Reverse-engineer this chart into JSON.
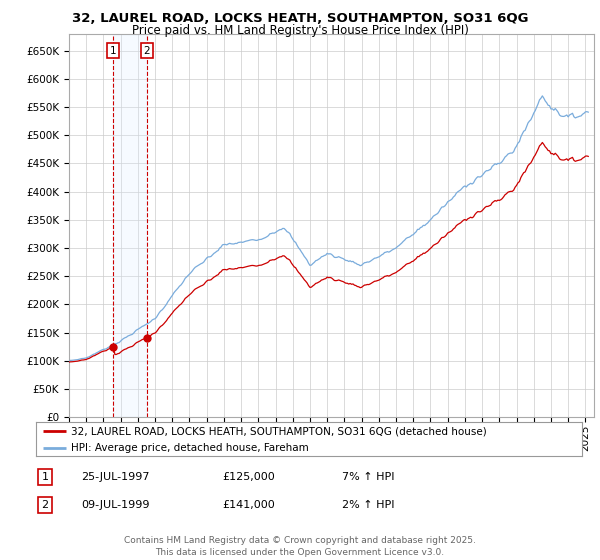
{
  "title_line1": "32, LAUREL ROAD, LOCKS HEATH, SOUTHAMPTON, SO31 6QG",
  "title_line2": "Price paid vs. HM Land Registry's House Price Index (HPI)",
  "xlim_start": 1995.0,
  "xlim_end": 2025.5,
  "ylim_min": 0,
  "ylim_max": 680000,
  "yticks": [
    0,
    50000,
    100000,
    150000,
    200000,
    250000,
    300000,
    350000,
    400000,
    450000,
    500000,
    550000,
    600000,
    650000
  ],
  "ytick_labels": [
    "£0",
    "£50K",
    "£100K",
    "£150K",
    "£200K",
    "£250K",
    "£300K",
    "£350K",
    "£400K",
    "£450K",
    "£500K",
    "£550K",
    "£600K",
    "£650K"
  ],
  "xticks": [
    1995,
    1996,
    1997,
    1998,
    1999,
    2000,
    2001,
    2002,
    2003,
    2004,
    2005,
    2006,
    2007,
    2008,
    2009,
    2010,
    2011,
    2012,
    2013,
    2014,
    2015,
    2016,
    2017,
    2018,
    2019,
    2020,
    2021,
    2022,
    2023,
    2024,
    2025
  ],
  "sale1_x": 1997.56,
  "sale1_y": 125000,
  "sale1_label": "1",
  "sale2_x": 1999.52,
  "sale2_y": 141000,
  "sale2_label": "2",
  "legend_line1": "32, LAUREL ROAD, LOCKS HEATH, SOUTHAMPTON, SO31 6QG (detached house)",
  "legend_line2": "HPI: Average price, detached house, Fareham",
  "footer": "Contains HM Land Registry data © Crown copyright and database right 2025.\nThis data is licensed under the Open Government Licence v3.0.",
  "line_color_red": "#cc0000",
  "line_color_blue": "#7aacdc",
  "shade_color": "#ddeeff",
  "background_color": "#ffffff",
  "grid_color": "#cccccc",
  "sale1_date": "25-JUL-1997",
  "sale1_price": "£125,000",
  "sale1_pct": "7% ↑ HPI",
  "sale2_date": "09-JUL-1999",
  "sale2_price": "£141,000",
  "sale2_pct": "2% ↑ HPI"
}
